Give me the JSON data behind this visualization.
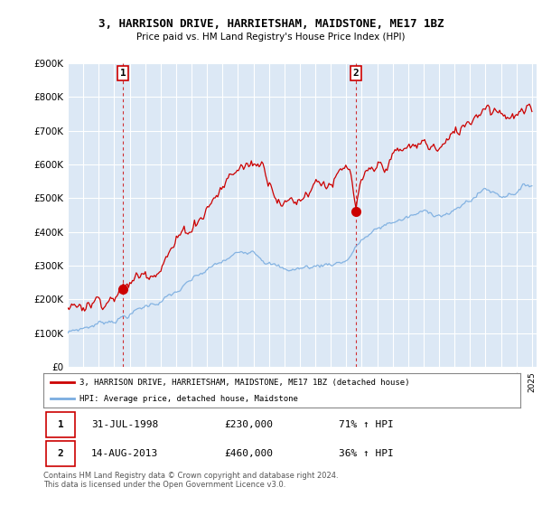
{
  "title": "3, HARRISON DRIVE, HARRIETSHAM, MAIDSTONE, ME17 1BZ",
  "subtitle": "Price paid vs. HM Land Registry's House Price Index (HPI)",
  "background_color": "#ffffff",
  "plot_bg_color": "#dce8f5",
  "grid_color": "#ffffff",
  "red_line_color": "#cc0000",
  "blue_line_color": "#7aade0",
  "purchase1_year": 1998.58,
  "purchase1_price": 230000,
  "purchase1_label": "1",
  "purchase2_year": 2013.62,
  "purchase2_price": 460000,
  "purchase2_label": "2",
  "legend_red": "3, HARRISON DRIVE, HARRIETSHAM, MAIDSTONE, ME17 1BZ (detached house)",
  "legend_blue": "HPI: Average price, detached house, Maidstone",
  "note1_label": "1",
  "note1_date": "31-JUL-1998",
  "note1_price": "£230,000",
  "note1_hpi": "71% ↑ HPI",
  "note2_label": "2",
  "note2_date": "14-AUG-2013",
  "note2_price": "£460,000",
  "note2_hpi": "36% ↑ HPI",
  "footer": "Contains HM Land Registry data © Crown copyright and database right 2024.\nThis data is licensed under the Open Government Licence v3.0.",
  "ylim": [
    0,
    900000
  ],
  "yticks": [
    0,
    100000,
    200000,
    300000,
    400000,
    500000,
    600000,
    700000,
    800000,
    900000
  ],
  "xmin": 1995,
  "xmax": 2025
}
